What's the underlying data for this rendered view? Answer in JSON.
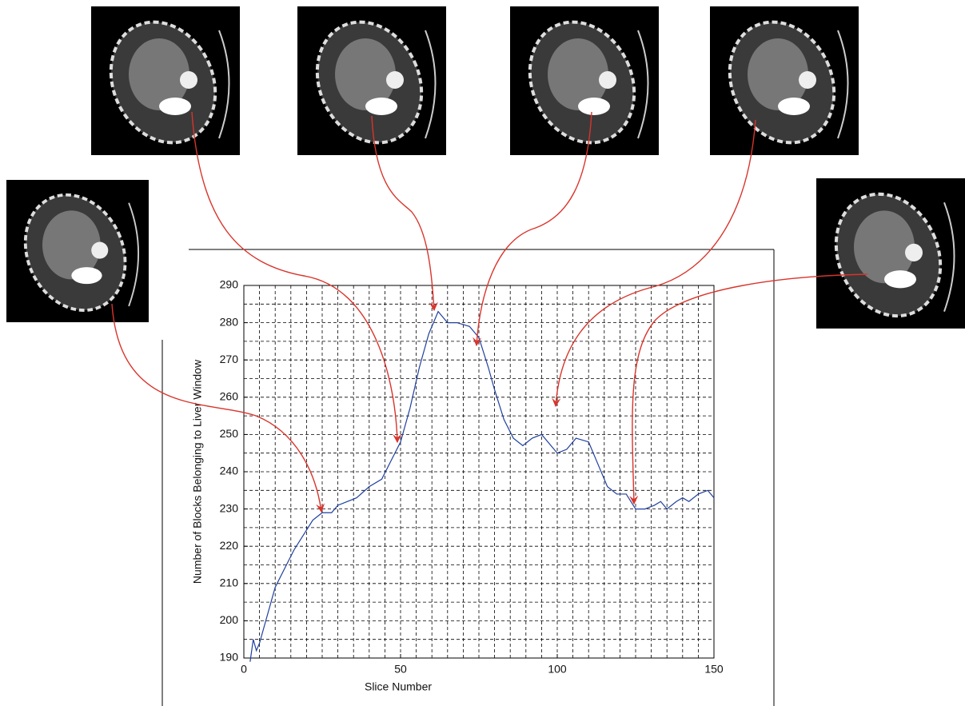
{
  "chart_data": {
    "type": "line",
    "xlabel": "Slice Number",
    "ylabel": "Number of Blocks Belonging to Liver Window",
    "x": [
      2,
      3,
      4,
      5,
      7,
      10,
      13,
      16,
      19,
      22,
      25,
      28,
      30,
      33,
      36,
      40,
      44,
      47,
      50,
      53,
      56,
      59,
      62,
      65,
      68,
      72,
      75,
      78,
      80,
      83,
      86,
      89,
      92,
      95,
      98,
      100,
      103,
      106,
      110,
      113,
      116,
      119,
      122,
      125,
      128,
      131,
      133,
      135,
      138,
      140,
      142,
      145,
      148,
      150
    ],
    "values": [
      189,
      195,
      192,
      194,
      200,
      209,
      214,
      219,
      223,
      227,
      229,
      229,
      231,
      232,
      233,
      236,
      238,
      243,
      248,
      257,
      268,
      277,
      283,
      280,
      280,
      279,
      276,
      268,
      262,
      254,
      249,
      247,
      249,
      250,
      247,
      245,
      246,
      249,
      248,
      242,
      236,
      234,
      234,
      230,
      230,
      231,
      232,
      230,
      232,
      233,
      232,
      234,
      235,
      233
    ],
    "color": "#1f3f9f",
    "xlim": [
      0,
      150
    ],
    "xticks": [
      0,
      50,
      100,
      150
    ],
    "ylim": [
      190,
      290
    ],
    "yticks": [
      190,
      200,
      210,
      220,
      230,
      240,
      250,
      260,
      270,
      280,
      290
    ],
    "grid": true
  }
}
